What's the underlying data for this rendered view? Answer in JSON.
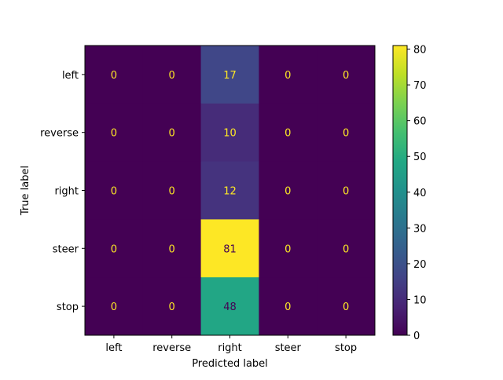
{
  "chart_data": {
    "type": "heatmap",
    "title": "",
    "xlabel": "Predicted label",
    "ylabel": "True label",
    "x_categories": [
      "left",
      "reverse",
      "right",
      "steer",
      "stop"
    ],
    "y_categories": [
      "left",
      "reverse",
      "right",
      "steer",
      "stop"
    ],
    "matrix": [
      [
        0,
        0,
        17,
        0,
        0
      ],
      [
        0,
        0,
        10,
        0,
        0
      ],
      [
        0,
        0,
        12,
        0,
        0
      ],
      [
        0,
        0,
        81,
        0,
        0
      ],
      [
        0,
        0,
        48,
        0,
        0
      ]
    ],
    "colormap": "viridis",
    "colorbar": {
      "range": [
        0,
        81
      ],
      "ticks": [
        0,
        10,
        20,
        30,
        40,
        50,
        60,
        70,
        80
      ]
    },
    "grid": false
  }
}
